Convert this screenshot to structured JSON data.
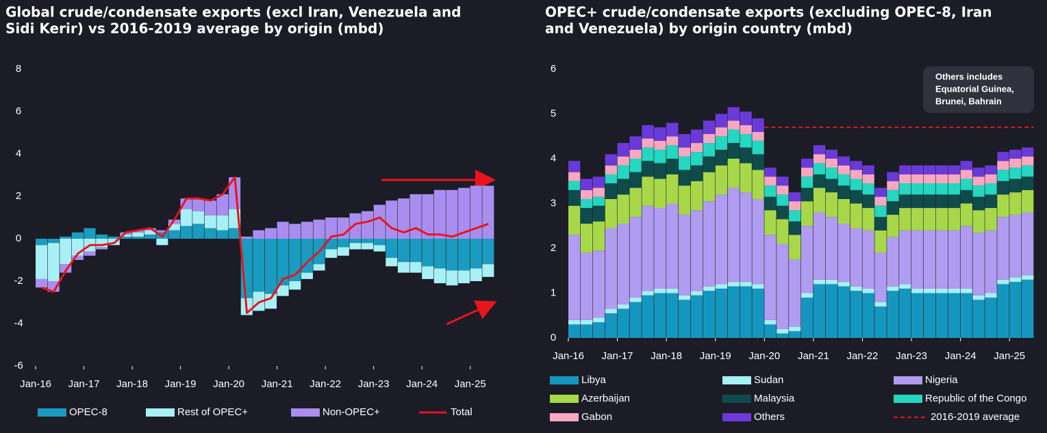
{
  "chart_data": [
    {
      "type": "bar",
      "title": [
        "Global crude/condensate exports (excl Iran, Venezuela and",
        "Sidi Kerir) vs 2016-2019 average by origin (mbd)"
      ],
      "categories": [
        "Jan-16",
        null,
        null,
        null,
        "Jan-17",
        null,
        null,
        null,
        "Jan-18",
        null,
        null,
        null,
        "Jan-19",
        null,
        null,
        null,
        "Jan-20",
        null,
        null,
        null,
        "Jan-21",
        null,
        null,
        null,
        "Jan-22",
        null,
        null,
        null,
        "Jan-23",
        null,
        null,
        null,
        "Jan-24",
        null,
        null,
        null,
        "Jan-25",
        null
      ],
      "ylim": [
        -6,
        8
      ],
      "yticks": [
        -6,
        -4,
        -2,
        0,
        2,
        4,
        6,
        8
      ],
      "stacked": true,
      "series": [
        {
          "name": "OPEC-8",
          "color": "#1a9bbf",
          "values": [
            -0.3,
            -0.2,
            0.1,
            0.3,
            0.5,
            0.2,
            0.1,
            0.1,
            0.1,
            0.2,
            0.3,
            0.4,
            0.6,
            0.7,
            0.5,
            0.4,
            0.5,
            -2.8,
            -2.5,
            -2.6,
            -2.2,
            -2.0,
            -1.6,
            -1.2,
            -0.5,
            -0.4,
            -0.2,
            -0.2,
            -0.3,
            -0.9,
            -1.1,
            -1.1,
            -1.3,
            -1.4,
            -1.5,
            -1.5,
            -1.4,
            -1.2
          ]
        },
        {
          "name": "Rest of OPEC+",
          "color": "#a8f0f5",
          "values": [
            -1.6,
            -1.8,
            -1.2,
            -0.8,
            -0.6,
            -0.4,
            -0.3,
            0.1,
            0.2,
            0.2,
            -0.3,
            0.3,
            0.8,
            0.6,
            0.6,
            0.7,
            0.9,
            -0.8,
            -0.9,
            -0.7,
            -0.5,
            -0.4,
            -0.3,
            -0.3,
            -0.4,
            -0.4,
            -0.3,
            -0.3,
            -0.3,
            -0.4,
            -0.5,
            -0.5,
            -0.6,
            -0.7,
            -0.7,
            -0.6,
            -0.6,
            -0.6
          ]
        },
        {
          "name": "Non-OPEC+",
          "color": "#a98ef0",
          "values": [
            -0.4,
            -0.5,
            -0.4,
            -0.2,
            -0.2,
            -0.1,
            0,
            0.1,
            0.1,
            0.1,
            0.1,
            0.2,
            0.5,
            0.6,
            0.7,
            1.0,
            1.5,
            0.1,
            0.4,
            0.5,
            0.8,
            0.7,
            0.8,
            0.9,
            1.0,
            1.0,
            1.2,
            1.3,
            1.6,
            1.8,
            1.9,
            2.1,
            2.1,
            2.3,
            2.3,
            2.4,
            2.5,
            2.5
          ]
        },
        {
          "name": "Total",
          "type": "line",
          "color": "#e8141c",
          "values": [
            -2.3,
            -2.5,
            -1.5,
            -0.7,
            -0.3,
            -0.3,
            -0.2,
            0.3,
            0.4,
            0.5,
            0.1,
            0.9,
            1.9,
            1.9,
            1.8,
            2.1,
            2.9,
            -3.5,
            -3.0,
            -2.8,
            -1.9,
            -1.7,
            -1.1,
            -0.6,
            0.1,
            0.2,
            0.7,
            0.8,
            1.0,
            0.5,
            0.3,
            0.5,
            0.2,
            0.2,
            0.1,
            0.3,
            0.5,
            0.7
          ]
        }
      ]
    },
    {
      "type": "bar",
      "title": [
        "OPEC+ crude/condensate exports (excluding OPEC-8, Iran",
        "and Venezuela) by origin country (mbd)"
      ],
      "categories": [
        "Jan-16",
        null,
        null,
        null,
        "Jan-17",
        null,
        null,
        null,
        "Jan-18",
        null,
        null,
        null,
        "Jan-19",
        null,
        null,
        null,
        "Jan-20",
        null,
        null,
        null,
        "Jan-21",
        null,
        null,
        null,
        "Jan-22",
        null,
        null,
        null,
        "Jan-23",
        null,
        null,
        null,
        "Jan-24",
        null,
        null,
        null,
        "Jan-25",
        null
      ],
      "ylim": [
        0,
        6
      ],
      "yticks": [
        0,
        1,
        2,
        3,
        4,
        5,
        6
      ],
      "stacked": true,
      "annotation": [
        "Others includes",
        "Equatorial Guinea,",
        "Brunei, Bahrain"
      ],
      "series": [
        {
          "name": "Libya",
          "color": "#1596bf",
          "values": [
            0.3,
            0.3,
            0.35,
            0.55,
            0.65,
            0.8,
            0.95,
            1.0,
            1.0,
            0.85,
            0.95,
            1.05,
            1.1,
            1.15,
            1.15,
            1.1,
            0.3,
            0.1,
            0.15,
            0.9,
            1.2,
            1.2,
            1.15,
            1.05,
            1.0,
            0.7,
            1.05,
            1.1,
            1.0,
            1.0,
            1.0,
            1.0,
            1.0,
            0.85,
            0.9,
            1.2,
            1.25,
            1.3
          ]
        },
        {
          "name": "Sudan",
          "color": "#a8f0f5",
          "values": [
            0.1,
            0.1,
            0.1,
            0.1,
            0.1,
            0.1,
            0.1,
            0.1,
            0.1,
            0.1,
            0.1,
            0.1,
            0.1,
            0.1,
            0.1,
            0.1,
            0.1,
            0.1,
            0.1,
            0.1,
            0.1,
            0.1,
            0.1,
            0.1,
            0.1,
            0.1,
            0.1,
            0.1,
            0.1,
            0.1,
            0.1,
            0.1,
            0.1,
            0.1,
            0.1,
            0.1,
            0.1,
            0.1
          ]
        },
        {
          "name": "Nigeria",
          "color": "#b09cf0",
          "values": [
            1.9,
            1.5,
            1.5,
            1.8,
            1.8,
            1.8,
            1.9,
            1.8,
            1.9,
            1.8,
            1.8,
            1.9,
            2.0,
            2.1,
            2.0,
            1.9,
            1.9,
            1.9,
            1.5,
            1.5,
            1.5,
            1.4,
            1.3,
            1.3,
            1.3,
            1.1,
            1.1,
            1.2,
            1.3,
            1.3,
            1.3,
            1.3,
            1.4,
            1.4,
            1.4,
            1.4,
            1.4,
            1.4
          ]
        },
        {
          "name": "Azerbaijan",
          "color": "#a8d84a",
          "values": [
            0.65,
            0.65,
            0.65,
            0.65,
            0.65,
            0.65,
            0.65,
            0.65,
            0.65,
            0.65,
            0.65,
            0.65,
            0.65,
            0.65,
            0.65,
            0.65,
            0.55,
            0.55,
            0.55,
            0.55,
            0.55,
            0.55,
            0.55,
            0.55,
            0.5,
            0.5,
            0.5,
            0.5,
            0.5,
            0.5,
            0.5,
            0.5,
            0.5,
            0.5,
            0.5,
            0.5,
            0.5,
            0.5
          ]
        },
        {
          "name": "Malaysia",
          "color": "#0f4b4a",
          "values": [
            0.35,
            0.35,
            0.35,
            0.35,
            0.35,
            0.35,
            0.35,
            0.35,
            0.35,
            0.35,
            0.35,
            0.35,
            0.35,
            0.35,
            0.35,
            0.35,
            0.3,
            0.3,
            0.3,
            0.3,
            0.3,
            0.3,
            0.3,
            0.3,
            0.3,
            0.3,
            0.3,
            0.3,
            0.3,
            0.3,
            0.3,
            0.3,
            0.3,
            0.3,
            0.3,
            0.3,
            0.3,
            0.3
          ]
        },
        {
          "name": "Republic of the Congo",
          "color": "#25d6c0",
          "values": [
            0.2,
            0.2,
            0.2,
            0.2,
            0.3,
            0.3,
            0.3,
            0.3,
            0.3,
            0.3,
            0.3,
            0.3,
            0.3,
            0.3,
            0.3,
            0.3,
            0.25,
            0.25,
            0.25,
            0.25,
            0.25,
            0.25,
            0.25,
            0.25,
            0.25,
            0.25,
            0.25,
            0.25,
            0.25,
            0.25,
            0.25,
            0.25,
            0.25,
            0.25,
            0.25,
            0.25,
            0.25,
            0.25
          ]
        },
        {
          "name": "Gabon",
          "color": "#f8a8c0",
          "values": [
            0.2,
            0.2,
            0.2,
            0.2,
            0.2,
            0.2,
            0.2,
            0.2,
            0.2,
            0.2,
            0.2,
            0.2,
            0.2,
            0.2,
            0.2,
            0.2,
            0.2,
            0.2,
            0.2,
            0.2,
            0.2,
            0.2,
            0.2,
            0.2,
            0.2,
            0.2,
            0.2,
            0.2,
            0.2,
            0.2,
            0.2,
            0.2,
            0.2,
            0.2,
            0.2,
            0.2,
            0.2,
            0.2
          ]
        },
        {
          "name": "Others",
          "color": "#6a3ad8",
          "values": [
            0.25,
            0.25,
            0.25,
            0.25,
            0.3,
            0.3,
            0.3,
            0.3,
            0.3,
            0.3,
            0.3,
            0.3,
            0.3,
            0.3,
            0.3,
            0.3,
            0.2,
            0.2,
            0.2,
            0.2,
            0.2,
            0.2,
            0.2,
            0.2,
            0.2,
            0.2,
            0.2,
            0.2,
            0.2,
            0.2,
            0.2,
            0.2,
            0.2,
            0.2,
            0.2,
            0.2,
            0.2,
            0.2
          ]
        }
      ],
      "reference_line": {
        "name": "2016-2019 average",
        "value": 4.7,
        "color": "#e8141c"
      }
    }
  ]
}
